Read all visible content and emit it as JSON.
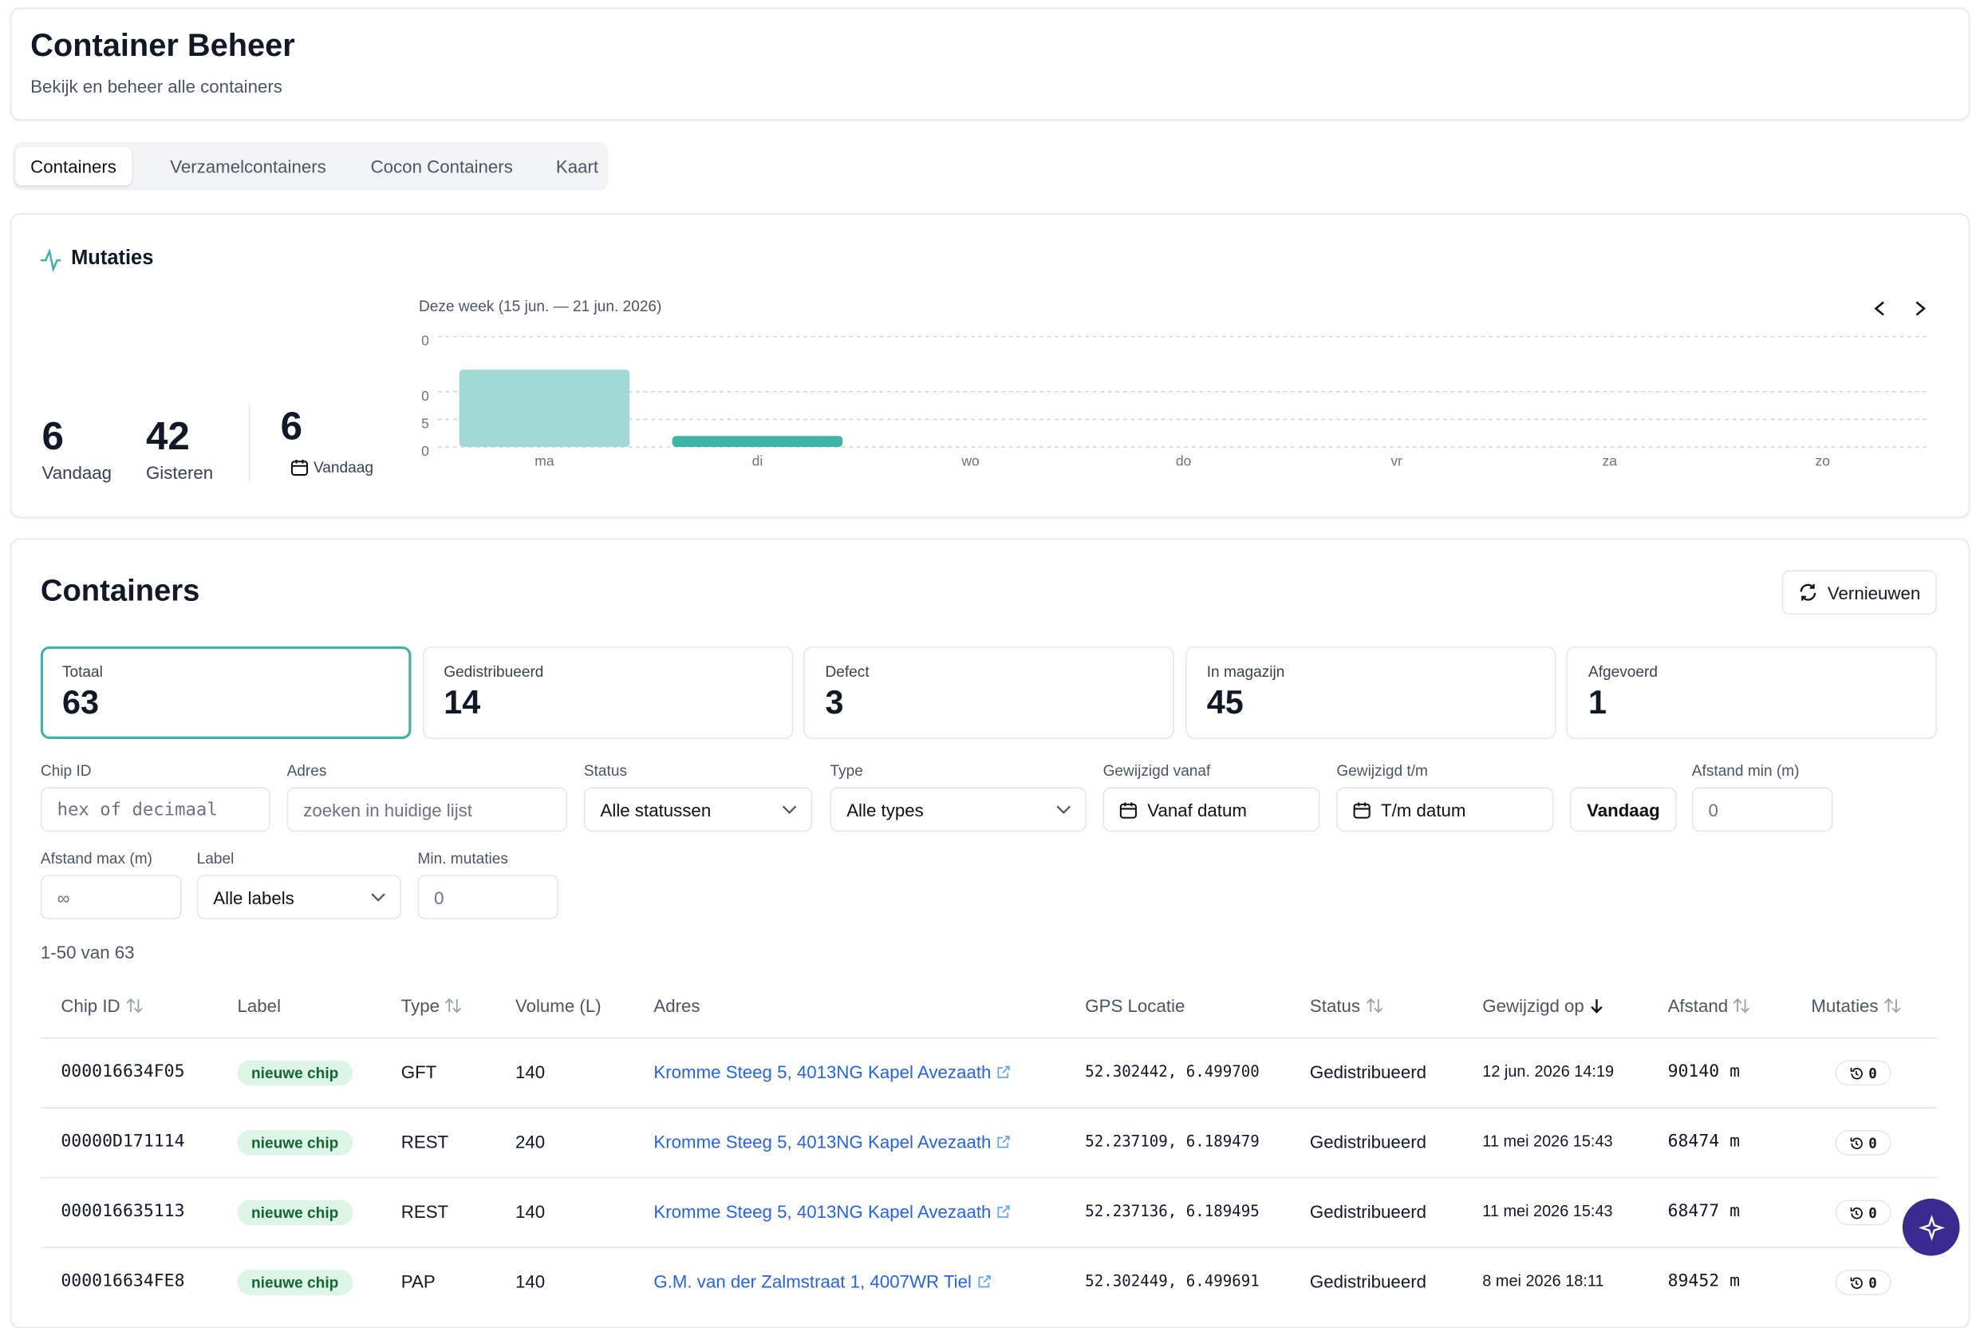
{
  "header": {
    "title": "Container Beheer",
    "subtitle": "Bekijk en beheer alle containers"
  },
  "tabs": [
    "Containers",
    "Verzamelcontainers",
    "Cocon Containers",
    "Kaart"
  ],
  "mutaties": {
    "title": "Mutaties",
    "stats": [
      {
        "value": 6,
        "label": "Vandaag"
      },
      {
        "value": 42,
        "label": "Gisteren"
      },
      {
        "value": 6,
        "label": "Vandaag"
      }
    ]
  },
  "chart_data": {
    "type": "bar",
    "subtitle": "Deze week (15 jun. — 21 jun. 2026)",
    "categories": [
      "ma",
      "di",
      "wo",
      "do",
      "vr",
      "za",
      "zo"
    ],
    "values": [
      14,
      2,
      0,
      0,
      0,
      0,
      0
    ],
    "colors": [
      "#a3d9d3",
      "#3fb3a5",
      "#3fb3a5",
      "#3fb3a5",
      "#3fb3a5",
      "#3fb3a5",
      "#3fb3a5"
    ],
    "ylim": [
      0,
      20
    ],
    "yticks": [
      {
        "value": 20,
        "label": "0"
      },
      {
        "value": 10,
        "label": "0"
      },
      5,
      0
    ],
    "grid": true
  },
  "containers": {
    "title": "Containers",
    "refresh": "Vernieuwen",
    "summary": [
      {
        "label": "Totaal",
        "value": 63
      },
      {
        "label": "Gedistribueerd",
        "value": 14
      },
      {
        "label": "Defect",
        "value": 3
      },
      {
        "label": "In magazijn",
        "value": 45
      },
      {
        "label": "Afgevoerd",
        "value": 1
      }
    ],
    "filters": [
      {
        "label": "Chip ID",
        "placeholder": "hex of decimaal"
      },
      {
        "label": "Adres",
        "placeholder": "zoeken in huidige lijst"
      },
      {
        "label": "Status",
        "value": "Alle statussen"
      },
      {
        "label": "Type",
        "value": "Alle types"
      },
      {
        "label": "Gewijzigd vanaf",
        "value": "Vanaf datum"
      },
      {
        "label": "Gewijzigd t/m",
        "value": "T/m datum"
      },
      {
        "button": "Vandaag"
      },
      {
        "label": "Afstand min (m)",
        "placeholder": "0"
      },
      {
        "label": "Afstand max (m)",
        "placeholder": "∞"
      },
      {
        "label": "Label",
        "value": "Alle labels"
      },
      {
        "label": "Min. mutaties",
        "placeholder": "0"
      }
    ],
    "count": "1-50 van 63",
    "table": {
      "columns": [
        "Chip ID",
        "Label",
        "Type",
        "Volume (L)",
        "Adres",
        "GPS Locatie",
        "Status",
        "Gewijzigd op",
        "Afstand",
        "Mutaties"
      ],
      "rows": [
        [
          "000016634F05",
          "nieuwe chip",
          "GFT",
          140,
          "Kromme Steeg 5, 4013NG Kapel Avezaath",
          "52.302442, 6.499700",
          "Gedistribueerd",
          "12 jun. 2026 14:19",
          "90140 m",
          0
        ],
        [
          "00000D171114",
          "nieuwe chip",
          "REST",
          240,
          "Kromme Steeg 5, 4013NG Kapel Avezaath",
          "52.237109, 6.189479",
          "Gedistribueerd",
          "11 mei 2026 15:43",
          "68474 m",
          0
        ],
        [
          "000016635113",
          "nieuwe chip",
          "REST",
          140,
          "Kromme Steeg 5, 4013NG Kapel Avezaath",
          "52.237136, 6.189495",
          "Gedistribueerd",
          "11 mei 2026 15:43",
          "68477 m",
          0
        ],
        [
          "000016634FE8",
          "nieuwe chip",
          "PAP",
          140,
          "G.M. van der Zalmstraat 1, 4007WR Tiel",
          "52.302449, 6.499691",
          "Gedistribueerd",
          "8 mei 2026 18:11",
          "89452 m",
          0
        ]
      ]
    }
  }
}
